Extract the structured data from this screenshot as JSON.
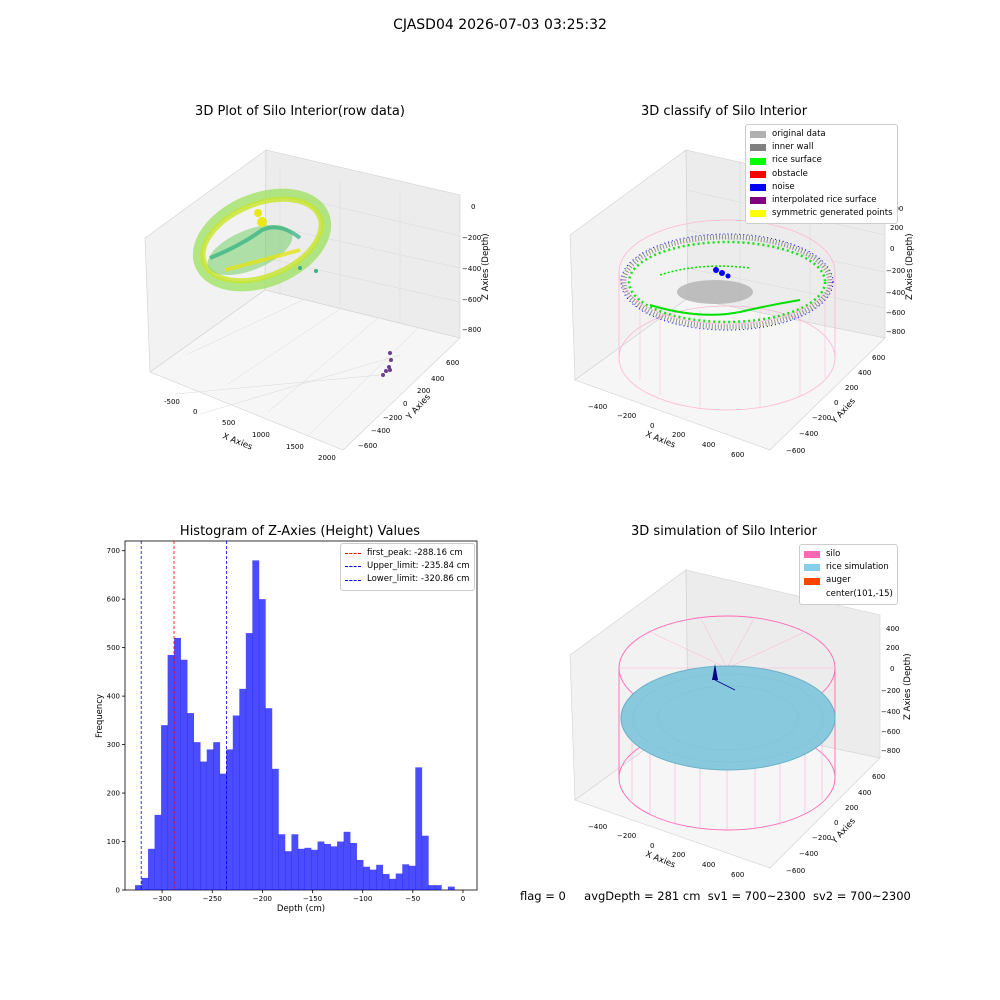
{
  "suptitle": "CJASD04 2026-07-03 03:25:32",
  "panels": {
    "raw": {
      "title": "3D Plot of Silo Interior(row data)",
      "xlabel": "X Axies",
      "ylabel": "Y Axies",
      "zlabel": "Z Axies (Depth)",
      "xticks": [
        "-500",
        "0",
        "500",
        "1000",
        "1500",
        "2000"
      ],
      "yticks": [
        "600",
        "400",
        "200",
        "0",
        "−200",
        "−400",
        "−600"
      ],
      "zticks": [
        "0",
        "−200",
        "−400",
        "−600",
        "−800"
      ]
    },
    "classify": {
      "title": "3D classify of Silo Interior",
      "xlabel": "X Axies",
      "ylabel": "Y Axies",
      "zlabel": "Z Axies (Depth)",
      "xticks": [
        "−400",
        "−200",
        "0",
        "200",
        "400",
        "600"
      ],
      "yticks": [
        "600",
        "400",
        "200",
        "0",
        "−200",
        "−400",
        "−600"
      ],
      "zticks": [
        "400",
        "200",
        "0",
        "−200",
        "−400",
        "−600",
        "−800"
      ],
      "legend": [
        {
          "label": "original data",
          "color": "#b0b0b0"
        },
        {
          "label": "inner wall",
          "color": "#808080"
        },
        {
          "label": "rice surface",
          "color": "#00ff00"
        },
        {
          "label": "obstacle",
          "color": "#ff0000"
        },
        {
          "label": "noise",
          "color": "#0000ff"
        },
        {
          "label": "interpolated rice surface",
          "color": "#800080"
        },
        {
          "label": "symmetric generated points",
          "color": "#ffff00"
        }
      ]
    },
    "simulation": {
      "title": "3D simulation of Silo Interior",
      "xlabel": "X Axies",
      "ylabel": "Y Axies",
      "zlabel": "Z Axies (Depth)",
      "xticks": [
        "−400",
        "−200",
        "0",
        "200",
        "400",
        "600"
      ],
      "yticks": [
        "600",
        "400",
        "200",
        "0",
        "−200",
        "−400",
        "−600"
      ],
      "zticks": [
        "400",
        "200",
        "0",
        "−200",
        "−400",
        "−600",
        "−800"
      ],
      "legend": [
        {
          "label": "silo",
          "color": "#ff69b4"
        },
        {
          "label": "rice simulation",
          "color": "#87ceeb"
        },
        {
          "label": "auger",
          "color": "#ff4500"
        },
        {
          "label": "center(101,-15)",
          "color": "#ffffff"
        }
      ]
    }
  },
  "chart_data": {
    "type": "bar",
    "title": "Histogram of Z-Axies (Height) Values",
    "xlabel": "Depth (cm)",
    "ylabel": "Frequency",
    "xlim": [
      -337,
      14
    ],
    "ylim": [
      0,
      720
    ],
    "xticks": [
      -300,
      -250,
      -200,
      -150,
      -100,
      -50,
      0
    ],
    "yticks": [
      0,
      100,
      200,
      300,
      400,
      500,
      600,
      700
    ],
    "bar_color": "#0000ff",
    "bin_start": -327,
    "bin_width": 6.5,
    "values": [
      10,
      25,
      85,
      155,
      340,
      485,
      520,
      475,
      365,
      305,
      265,
      290,
      305,
      240,
      290,
      360,
      415,
      530,
      680,
      600,
      375,
      250,
      115,
      80,
      115,
      85,
      87,
      83,
      100,
      95,
      90,
      100,
      120,
      97,
      62,
      48,
      42,
      52,
      33,
      23,
      34,
      53,
      50,
      253,
      112,
      10,
      10,
      0,
      7
    ],
    "vlines": [
      {
        "label": "first_peak: -288.16 cm",
        "x": -288.16,
        "color": "#ff0000"
      },
      {
        "label": "Upper_limit: -235.84 cm",
        "x": -235.84,
        "color": "#0000ff"
      },
      {
        "label": "Lower_limit: -320.86 cm",
        "x": -320.86,
        "color": "#0000ff"
      }
    ],
    "legend_loc": "upper right"
  },
  "status": {
    "flag": "flag = 0",
    "avg_depth": "avgDepth = 281 cm",
    "sv1": "sv1 = 700~2300",
    "sv2": "sv2 = 700~2300"
  }
}
